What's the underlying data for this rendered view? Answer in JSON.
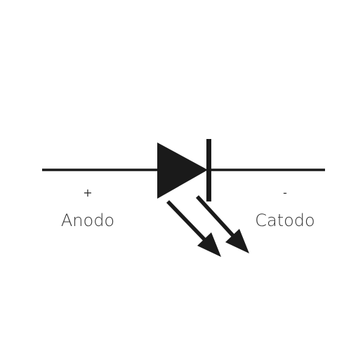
{
  "diagram": {
    "type": "led-schematic-symbol",
    "anode": {
      "sign": "+",
      "label": "Anodo"
    },
    "cathode": {
      "sign": "-",
      "label": "Catodo"
    },
    "colors": {
      "background": "#ffffff",
      "stroke": "#1a1a1a",
      "text": "#333333"
    }
  }
}
